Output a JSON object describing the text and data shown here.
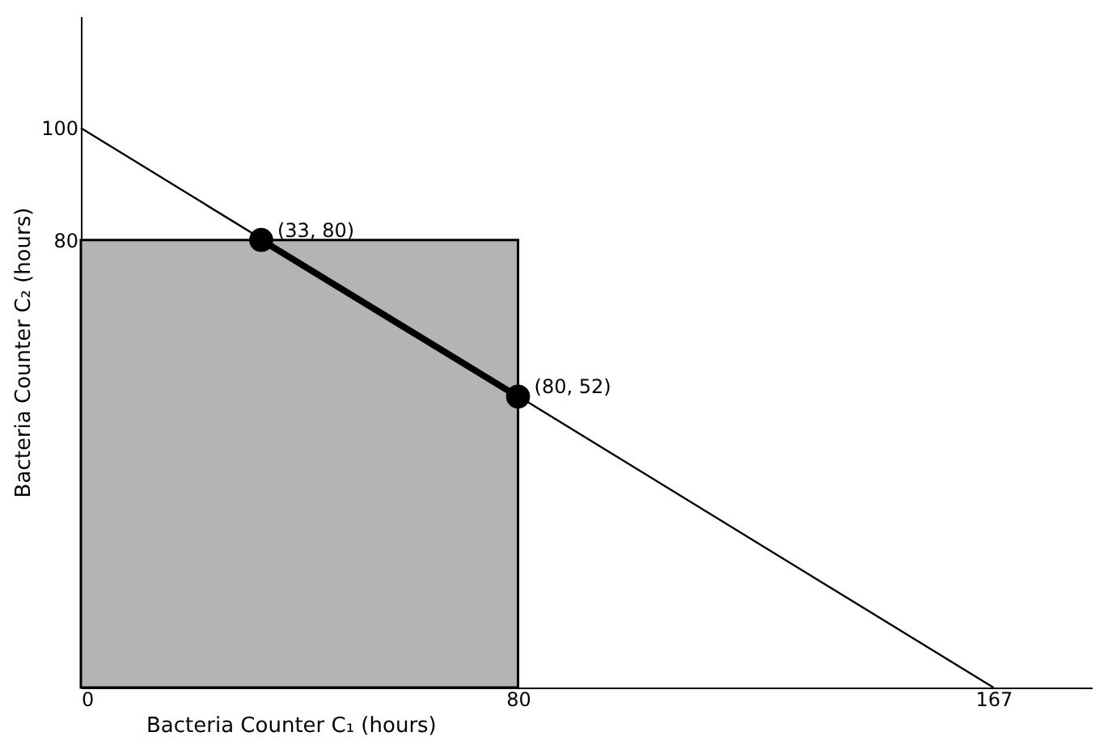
{
  "chart_data": {
    "type": "line",
    "xlabel": "Bacteria Counter C₁     (hours)",
    "ylabel": "Bacteria Counter C₂  (hours)",
    "series": [
      {
        "type": "area",
        "x": [
          0,
          80
        ],
        "values": [
          80,
          80
        ],
        "color": "#b4b4b4"
      },
      {
        "x": [
          0,
          167
        ],
        "values": [
          100,
          0
        ],
        "color": "#000000",
        "marker": "none"
      },
      {
        "x": [
          33,
          80
        ],
        "values": [
          80,
          52
        ],
        "color": "#000000",
        "marker": "circle"
      }
    ],
    "annotations": [
      {
        "text": "(33, 80)",
        "x": 33,
        "y": 80
      },
      {
        "text": "(80, 52)",
        "x": 80,
        "y": 52
      }
    ],
    "xlim": [
      0,
      185
    ],
    "ylim": [
      0,
      120
    ],
    "xticks": [
      0,
      80,
      167
    ],
    "yticks": [
      80,
      100
    ],
    "grid": false
  }
}
